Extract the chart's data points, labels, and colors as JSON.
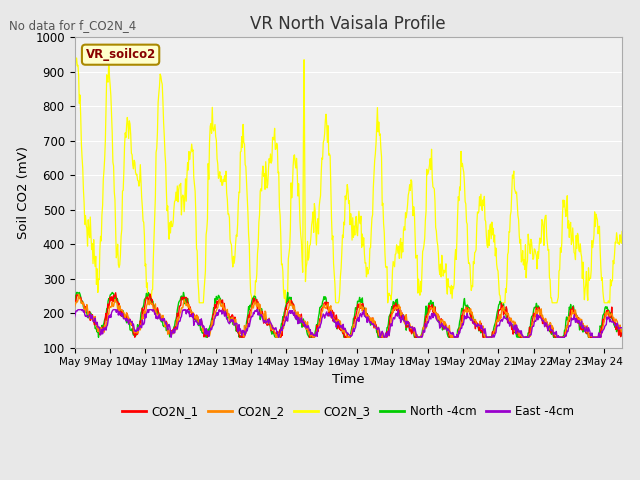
{
  "title": "VR North Vaisala Profile",
  "no_data_label": "No data for f_CO2N_4",
  "box_label": "VR_soilco2",
  "xlabel": "Time",
  "ylabel": "Soil CO2 (mV)",
  "ylim": [
    100,
    1000
  ],
  "x_tick_labels": [
    "May 9",
    "May 10",
    "May 11",
    "May 12",
    "May 13",
    "May 14",
    "May 15",
    "May 16",
    "May 17",
    "May 18",
    "May 19",
    "May 20",
    "May 21",
    "May 22",
    "May 23",
    "May 24"
  ],
  "fig_bg_color": "#e8e8e8",
  "plot_bg_color": "#f0f0f0",
  "grid_color": "#ffffff",
  "legend_entries": [
    {
      "label": "CO2N_1",
      "color": "#ff0000"
    },
    {
      "label": "CO2N_2",
      "color": "#ff8800"
    },
    {
      "label": "CO2N_3",
      "color": "#ffff00"
    },
    {
      "label": "North -4cm",
      "color": "#00cc00"
    },
    {
      "label": "East -4cm",
      "color": "#9900cc"
    }
  ],
  "co2n3_color": "#ffff00",
  "co2n1_color": "#ff0000",
  "co2n2_color": "#ff8800",
  "north_color": "#00cc00",
  "east_color": "#9900cc",
  "box_face": "#ffffcc",
  "box_edge": "#aa8800",
  "box_text": "#880000"
}
